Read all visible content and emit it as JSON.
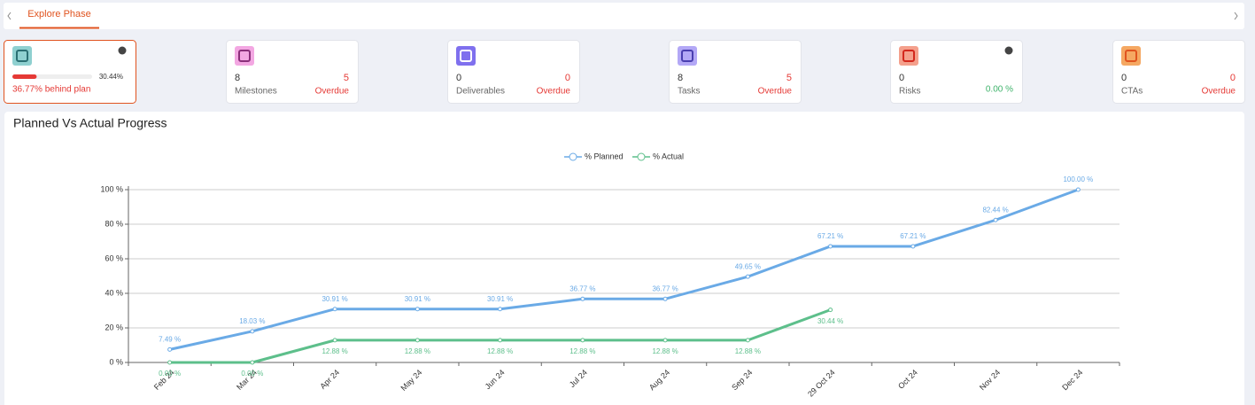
{
  "tabs": [
    "Explore Phase"
  ],
  "cards": [
    {
      "progress": {
        "value": 30.44,
        "label": "30.44%"
      },
      "status": "36.77% behind plan"
    },
    {
      "count": 8,
      "label": "Milestones",
      "overdue": 5,
      "overdue_label": "Overdue"
    },
    {
      "count": 0,
      "label": "Deliverables",
      "overdue": 0,
      "overdue_label": "Overdue"
    },
    {
      "count": 8,
      "label": "Tasks",
      "overdue": 5,
      "overdue_label": "Overdue"
    },
    {
      "count": 0,
      "label": "Risks",
      "rate": "0.00 %"
    },
    {
      "count": 0,
      "label": "CTAs",
      "overdue": 0,
      "overdue_label": "Overdue"
    }
  ],
  "chart_data": {
    "type": "line",
    "title": "Planned Vs Actual Progress",
    "categories": [
      "Feb 24",
      "Mar 24",
      "Apr 24",
      "May 24",
      "Jun 24",
      "Jul 24",
      "Aug 24",
      "Sep 24",
      "29 Oct 24",
      "Oct 24",
      "Nov 24",
      "Dec 24"
    ],
    "series": [
      {
        "name": "% Planned",
        "color": "#6aaae6",
        "values": [
          7.49,
          18.03,
          30.91,
          30.91,
          30.91,
          36.77,
          36.77,
          49.65,
          67.21,
          67.21,
          82.44,
          100
        ],
        "value_labels": [
          "7.49 %",
          "18.03 %",
          "30.91 %",
          "30.91 %",
          "30.91 %",
          "36.77 %",
          "36.77 %",
          "49.65 %",
          "67.21 %",
          "67.21 %",
          "82.44 %",
          "100.00 %"
        ]
      },
      {
        "name": "% Actual",
        "color": "#5dbf8b",
        "values": [
          0,
          0,
          12.88,
          12.88,
          12.88,
          12.88,
          12.88,
          12.88,
          30.44,
          null,
          null,
          null
        ],
        "value_labels": [
          "0.00 %",
          "0.00 %",
          "12.88 %",
          "12.88 %",
          "12.88 %",
          "12.88 %",
          "12.88 %",
          "12.88 %",
          "30.44 %",
          null,
          null,
          null
        ]
      }
    ],
    "ylim": [
      0,
      100
    ],
    "yticks": [
      {
        "value": 0,
        "label": "0 %"
      },
      {
        "value": 20,
        "label": "20 %"
      },
      {
        "value": 40,
        "label": "40 %"
      },
      {
        "value": 60,
        "label": "60 %"
      },
      {
        "value": 80,
        "label": "80 %"
      },
      {
        "value": 100,
        "label": "100 %"
      }
    ],
    "grid": true,
    "legend": "top"
  }
}
